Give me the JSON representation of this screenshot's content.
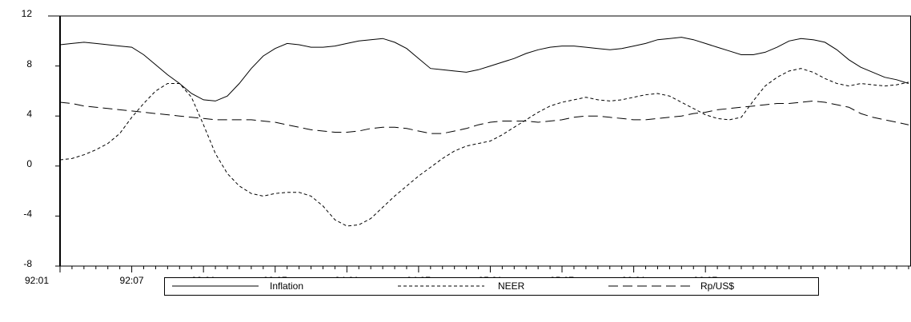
{
  "chart_data": {
    "type": "line",
    "categories": [
      "92:01",
      null,
      null,
      null,
      null,
      null,
      "92:07",
      null,
      null,
      null,
      null,
      null,
      "93:01",
      null,
      null,
      null,
      null,
      null,
      "93:07",
      null,
      null,
      null,
      null,
      null,
      "94:01",
      null,
      null,
      null,
      null,
      null,
      "94:07",
      null,
      null,
      null,
      null,
      null,
      "95:01",
      null,
      null,
      null,
      null,
      null,
      "95:07",
      null,
      null,
      null,
      null,
      null,
      "96:01",
      null,
      null,
      null,
      null,
      null,
      "96:07",
      null,
      null,
      null,
      null,
      null,
      null,
      null,
      null,
      null,
      null,
      null,
      null,
      null,
      null,
      null,
      null,
      null
    ],
    "series": [
      {
        "name": "Inflation",
        "color": "#000000",
        "dash": "none",
        "values": [
          9.7,
          9.8,
          9.9,
          9.8,
          9.7,
          9.6,
          9.5,
          8.9,
          8.1,
          7.3,
          6.6,
          5.8,
          5.3,
          5.2,
          5.6,
          6.6,
          7.8,
          8.8,
          9.4,
          9.8,
          9.7,
          9.5,
          9.5,
          9.6,
          9.8,
          10.0,
          10.1,
          10.2,
          9.9,
          9.4,
          8.6,
          7.8,
          7.7,
          7.6,
          7.5,
          7.7,
          8.0,
          8.3,
          8.6,
          9.0,
          9.3,
          9.5,
          9.6,
          9.6,
          9.5,
          9.4,
          9.3,
          9.4,
          9.6,
          9.8,
          10.1,
          10.2,
          10.3,
          10.1,
          9.8,
          9.5,
          9.2,
          8.9,
          8.9,
          9.1,
          9.5,
          10.0,
          10.2,
          10.1,
          9.9,
          9.3,
          8.5,
          7.9,
          7.5,
          7.1,
          6.9,
          6.6
        ]
      },
      {
        "name": "NEER",
        "color": "#000000",
        "dash": "4,3",
        "values": [
          0.5,
          0.6,
          0.9,
          1.3,
          1.8,
          2.6,
          3.9,
          5.0,
          6.0,
          6.6,
          6.6,
          5.5,
          3.3,
          1.0,
          -0.6,
          -1.6,
          -2.2,
          -2.4,
          -2.2,
          -2.1,
          -2.1,
          -2.4,
          -3.2,
          -4.3,
          -4.8,
          -4.7,
          -4.2,
          -3.3,
          -2.4,
          -1.6,
          -0.8,
          -0.1,
          0.6,
          1.2,
          1.6,
          1.8,
          2.0,
          2.5,
          3.1,
          3.7,
          4.3,
          4.8,
          5.1,
          5.3,
          5.5,
          5.3,
          5.2,
          5.3,
          5.5,
          5.7,
          5.8,
          5.6,
          5.1,
          4.6,
          4.1,
          3.8,
          3.7,
          3.9,
          5.2,
          6.4,
          7.1,
          7.6,
          7.8,
          7.5,
          7.0,
          6.6,
          6.4,
          6.6,
          6.5,
          6.4,
          6.5,
          6.7
        ]
      },
      {
        "name": "Rp/US$",
        "color": "#000000",
        "dash": "12,6",
        "values": [
          5.1,
          5.0,
          4.8,
          4.7,
          4.6,
          4.5,
          4.4,
          4.3,
          4.2,
          4.1,
          4.0,
          3.9,
          3.8,
          3.7,
          3.7,
          3.7,
          3.7,
          3.6,
          3.5,
          3.3,
          3.1,
          2.9,
          2.8,
          2.7,
          2.7,
          2.8,
          3.0,
          3.1,
          3.1,
          3.0,
          2.8,
          2.6,
          2.6,
          2.8,
          3.0,
          3.3,
          3.5,
          3.6,
          3.6,
          3.6,
          3.5,
          3.6,
          3.7,
          3.9,
          4.0,
          4.0,
          3.9,
          3.8,
          3.7,
          3.7,
          3.8,
          3.9,
          4.0,
          4.2,
          4.3,
          4.5,
          4.6,
          4.7,
          4.8,
          4.9,
          5.0,
          5.0,
          5.1,
          5.2,
          5.1,
          4.9,
          4.7,
          4.2,
          3.9,
          3.7,
          3.5,
          3.3
        ]
      }
    ],
    "ylim": [
      -8,
      12
    ],
    "yticks": [
      -8,
      -4,
      0,
      4,
      8,
      12
    ],
    "legend": "bottom"
  }
}
